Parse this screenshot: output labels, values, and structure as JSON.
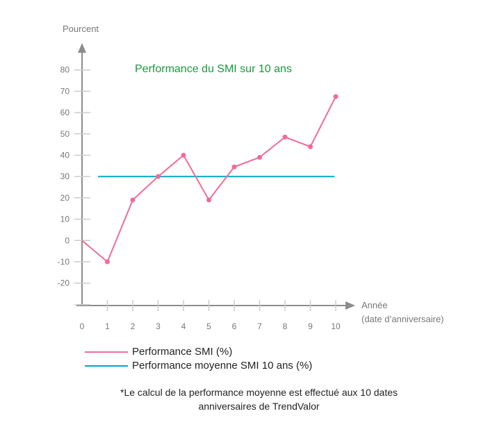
{
  "chart_data": {
    "type": "line",
    "title": "Performance du SMI sur 10 ans",
    "ylabel": "Pourcent",
    "xlabel": [
      "Année",
      "(date d’anniversaire)"
    ],
    "x": [
      0,
      1,
      2,
      3,
      4,
      5,
      6,
      7,
      8,
      9,
      10
    ],
    "ylim": [
      -20,
      80
    ],
    "yticks": [
      80,
      70,
      60,
      50,
      40,
      30,
      20,
      10,
      0,
      -10,
      -20
    ],
    "xticks": [
      0,
      1,
      2,
      3,
      4,
      5,
      6,
      7,
      8,
      9,
      10
    ],
    "grid": false,
    "series": [
      {
        "name": "Performance SMI (%)",
        "color": "#f06c97",
        "values": [
          0,
          -10,
          19,
          30,
          40,
          19,
          34.5,
          39,
          48.5,
          44,
          67.5
        ]
      },
      {
        "name": "Performance moyenne SMI 10 ans (%)",
        "color": "#00a9c5",
        "values": [
          30,
          30,
          30,
          30,
          30,
          30,
          30,
          30,
          30,
          30,
          30
        ]
      }
    ],
    "legend_position": "bottom-left",
    "footnote": [
      "*Le calcul de la performance moyenne est effectué aux 10 dates",
      "anniversaires de TrendValor"
    ]
  }
}
